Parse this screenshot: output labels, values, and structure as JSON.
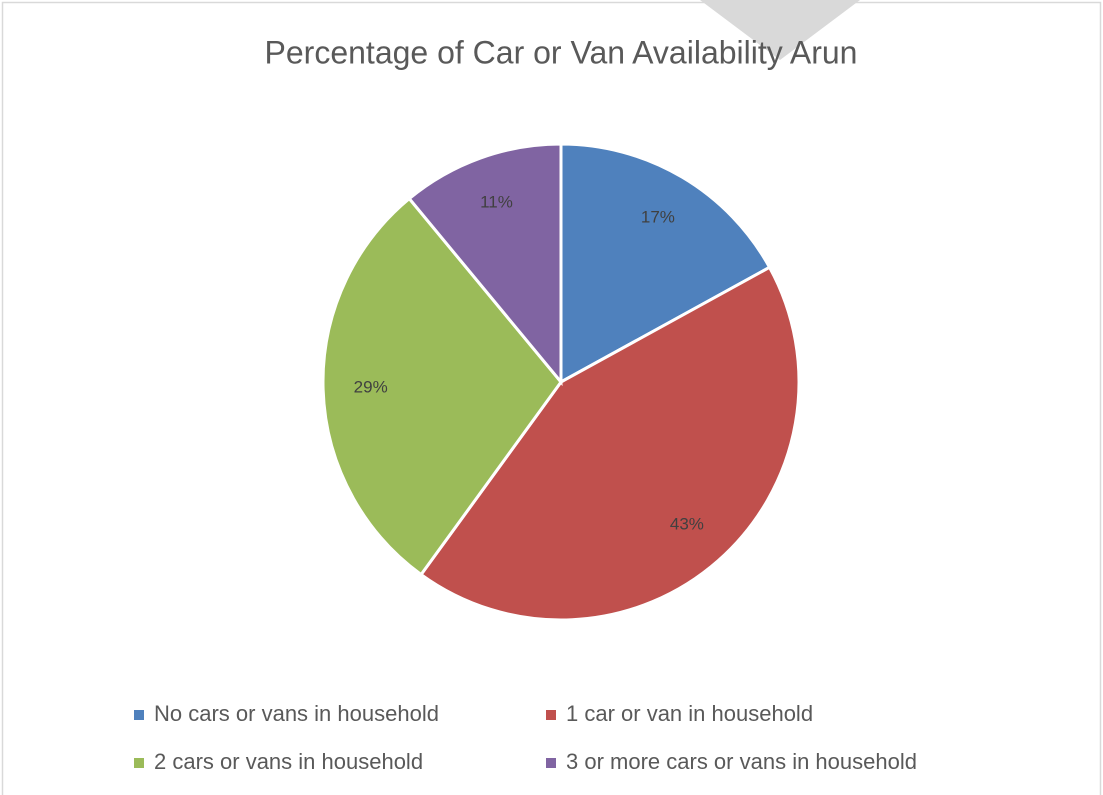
{
  "chart_data": {
    "type": "pie",
    "title": "Percentage of Car or Van Availability Arun",
    "categories": [
      "No cars or vans in household",
      "1 car or van in household",
      "2 cars or vans in household",
      "3 or more cars or vans in household"
    ],
    "values": [
      17,
      43,
      29,
      11
    ],
    "value_labels": [
      "17%",
      "43%",
      "29%",
      "11%"
    ],
    "colors": [
      "#4f81bd",
      "#c0504d",
      "#9bbb59",
      "#8064a2"
    ]
  }
}
